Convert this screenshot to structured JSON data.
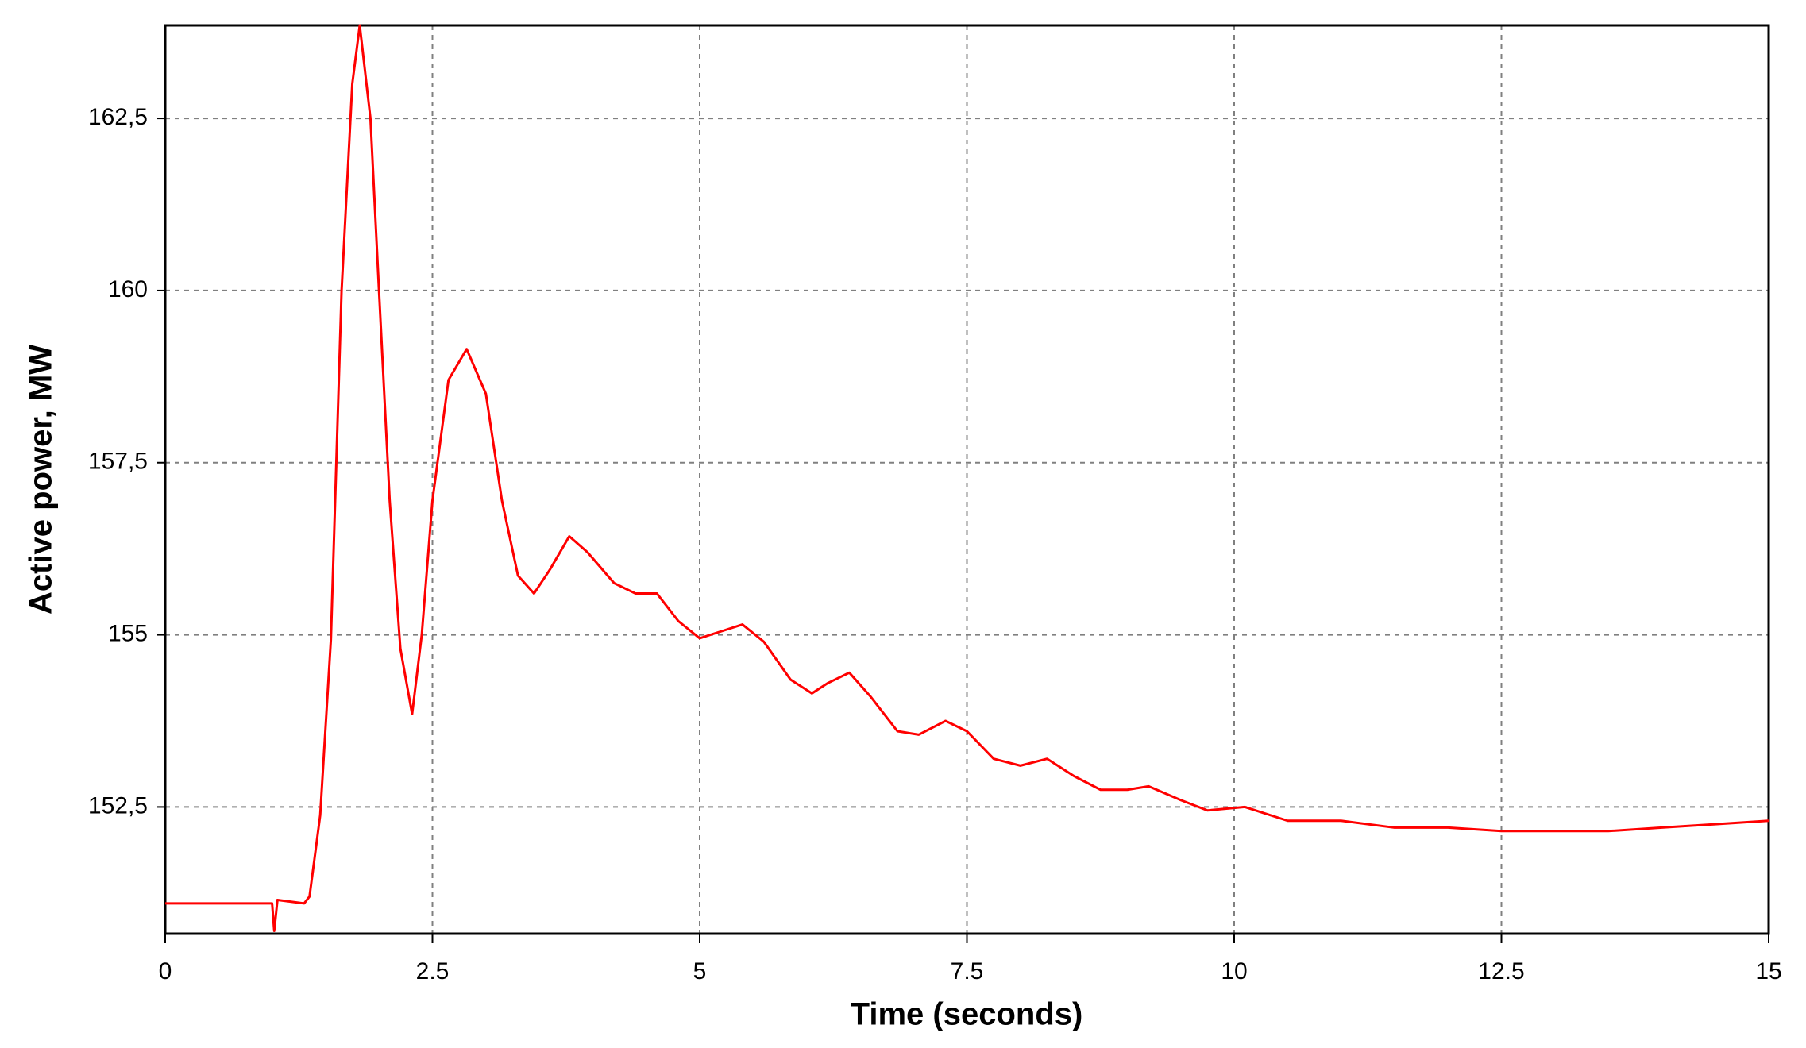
{
  "chart_data": {
    "type": "line",
    "x_label": "Time (seconds)",
    "y_label": "Active power, MW",
    "x": [
      0,
      1.0,
      1.02,
      1.05,
      1.3,
      1.35,
      1.45,
      1.55,
      1.65,
      1.75,
      1.82,
      1.92,
      2.0,
      2.1,
      2.2,
      2.31,
      2.4,
      2.5,
      2.65,
      2.82,
      3.0,
      3.15,
      3.3,
      3.45,
      3.6,
      3.78,
      3.95,
      4.2,
      4.4,
      4.6,
      4.8,
      5.0,
      5.2,
      5.4,
      5.6,
      5.85,
      6.05,
      6.2,
      6.4,
      6.6,
      6.85,
      7.05,
      7.3,
      7.5,
      7.75,
      8.0,
      8.25,
      8.5,
      8.75,
      9.0,
      9.2,
      9.5,
      9.75,
      10.1,
      10.5,
      11.0,
      11.5,
      12.0,
      12.5,
      13.0,
      13.5,
      14.0,
      14.5,
      15
    ],
    "series": [
      {
        "color": "#ff0000",
        "values": [
          151.1,
          151.1,
          150.7,
          151.15,
          151.1,
          151.2,
          152.38,
          154.93,
          160,
          163,
          163.85,
          162.5,
          160,
          156.95,
          154.8,
          153.85,
          155,
          156.95,
          158.7,
          159.15,
          158.5,
          156.95,
          155.86,
          155.6,
          155.95,
          156.43,
          156.2,
          155.75,
          155.6,
          155.6,
          155.2,
          154.95,
          155.05,
          155.15,
          154.9,
          154.35,
          154.15,
          154.3,
          154.45,
          154.1,
          153.6,
          153.55,
          153.75,
          153.6,
          153.2,
          153.1,
          153.2,
          152.95,
          152.75,
          152.75,
          152.8,
          152.6,
          152.45,
          152.5,
          152.3,
          152.3,
          152.2,
          152.2,
          152.15,
          152.15,
          152.15,
          152.2,
          152.25,
          152.3
        ]
      }
    ],
    "xlim": [
      0,
      15
    ],
    "xticks": [
      0,
      2.5,
      5,
      7.5,
      10,
      12.5,
      15
    ],
    "ylim": [
      150.66,
      163.85
    ],
    "yticks": [
      {
        "value": 152.5,
        "label": "152,5"
      },
      155,
      {
        "value": 157.5,
        "label": "157,5"
      },
      160,
      {
        "value": 162.5,
        "label": "162,5"
      }
    ],
    "grid": true
  }
}
